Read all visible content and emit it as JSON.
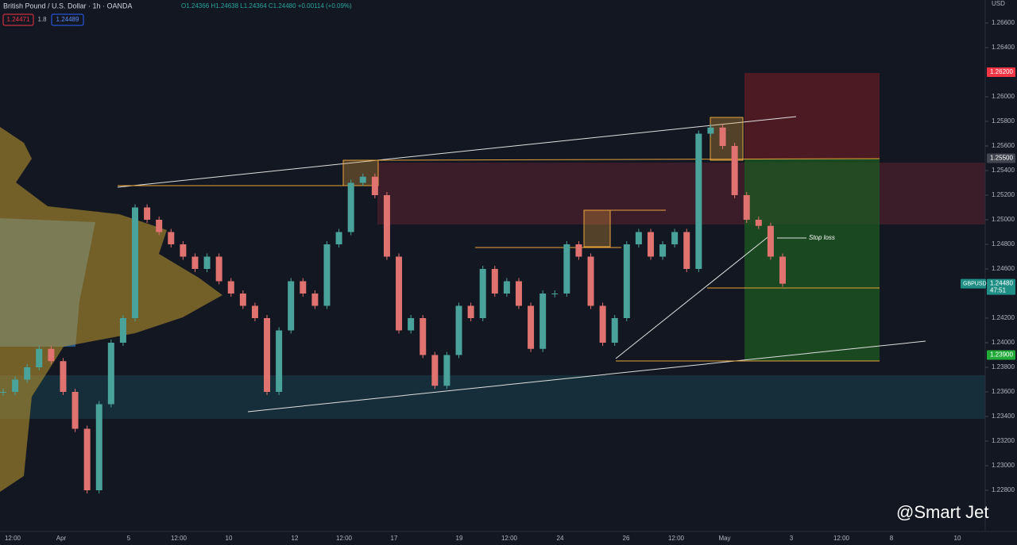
{
  "header": {
    "title": "British Pound / U.S. Dollar · 1h · OANDA",
    "ohlc": "O1.24366 H1.24638 L1.24364 C1.24480 +0.00114 (+0.09%)",
    "sell": "1.24471",
    "spread": "1.8",
    "buy": "1.24489",
    "currency": "USD"
  },
  "chart_data": {
    "type": "candlestick",
    "up_color": "#4aa39a",
    "down_color": "#e0726f",
    "ylim": [
      1.228,
      1.266
    ],
    "yticks": [
      {
        "value": 1.266,
        "label": "1.26600"
      },
      {
        "value": 1.264,
        "label": "1.26400"
      },
      {
        "value": 1.26,
        "label": "1.26000"
      },
      {
        "value": 1.258,
        "label": "1.25800"
      },
      {
        "value": 1.256,
        "label": "1.25600"
      },
      {
        "value": 1.254,
        "label": "1.25400"
      },
      {
        "value": 1.252,
        "label": "1.25200"
      },
      {
        "value": 1.25,
        "label": "1.25000"
      },
      {
        "value": 1.248,
        "label": "1.24800"
      },
      {
        "value": 1.246,
        "label": "1.24600"
      },
      {
        "value": 1.242,
        "label": "1.24200"
      },
      {
        "value": 1.24,
        "label": "1.24000"
      },
      {
        "value": 1.238,
        "label": "1.23800"
      },
      {
        "value": 1.236,
        "label": "1.23600"
      },
      {
        "value": 1.234,
        "label": "1.23400"
      },
      {
        "value": 1.232,
        "label": "1.23200"
      },
      {
        "value": 1.23,
        "label": "1.23000"
      },
      {
        "value": 1.228,
        "label": "1.22800"
      }
    ],
    "price_labels": [
      {
        "value": 1.262,
        "label": "1.26200",
        "color": "#f23645"
      },
      {
        "value": 1.255,
        "label": "1.25500",
        "color": "#434651"
      },
      {
        "value": 1.2448,
        "label": "1.24480",
        "color": "#1f8f86"
      },
      {
        "value": 1.239,
        "label": "1.23900",
        "color": "#22ab39"
      }
    ],
    "symbol": "GBPUSD",
    "countdown": "47:51",
    "x_labels": [
      "12:00",
      "Apr",
      "5",
      "12:00",
      "10",
      "12",
      "12:00",
      "17",
      "19",
      "12:00",
      "24",
      "26",
      "12:00",
      "May",
      "3",
      "12:00",
      "8",
      "10"
    ],
    "closes": [
      1.236,
      1.237,
      1.238,
      1.2395,
      1.2385,
      1.236,
      1.233,
      1.228,
      1.235,
      1.24,
      1.242,
      1.251,
      1.25,
      1.249,
      1.248,
      1.247,
      1.246,
      1.247,
      1.245,
      1.244,
      1.243,
      1.242,
      1.236,
      1.241,
      1.245,
      1.244,
      1.243,
      1.248,
      1.249,
      1.253,
      1.2535,
      1.252,
      1.247,
      1.241,
      1.242,
      1.239,
      1.2365,
      1.239,
      1.243,
      1.242,
      1.246,
      1.244,
      1.245,
      1.243,
      1.2395,
      1.244,
      1.244,
      1.248,
      1.247,
      1.243,
      1.24,
      1.242,
      1.248,
      1.249,
      1.247,
      1.248,
      1.249,
      1.246,
      1.257,
      1.2575,
      1.256,
      1.252,
      1.25,
      1.2495,
      1.247,
      1.2448
    ],
    "annotation": "Stop loss",
    "watermark": "@Smart Jet"
  }
}
